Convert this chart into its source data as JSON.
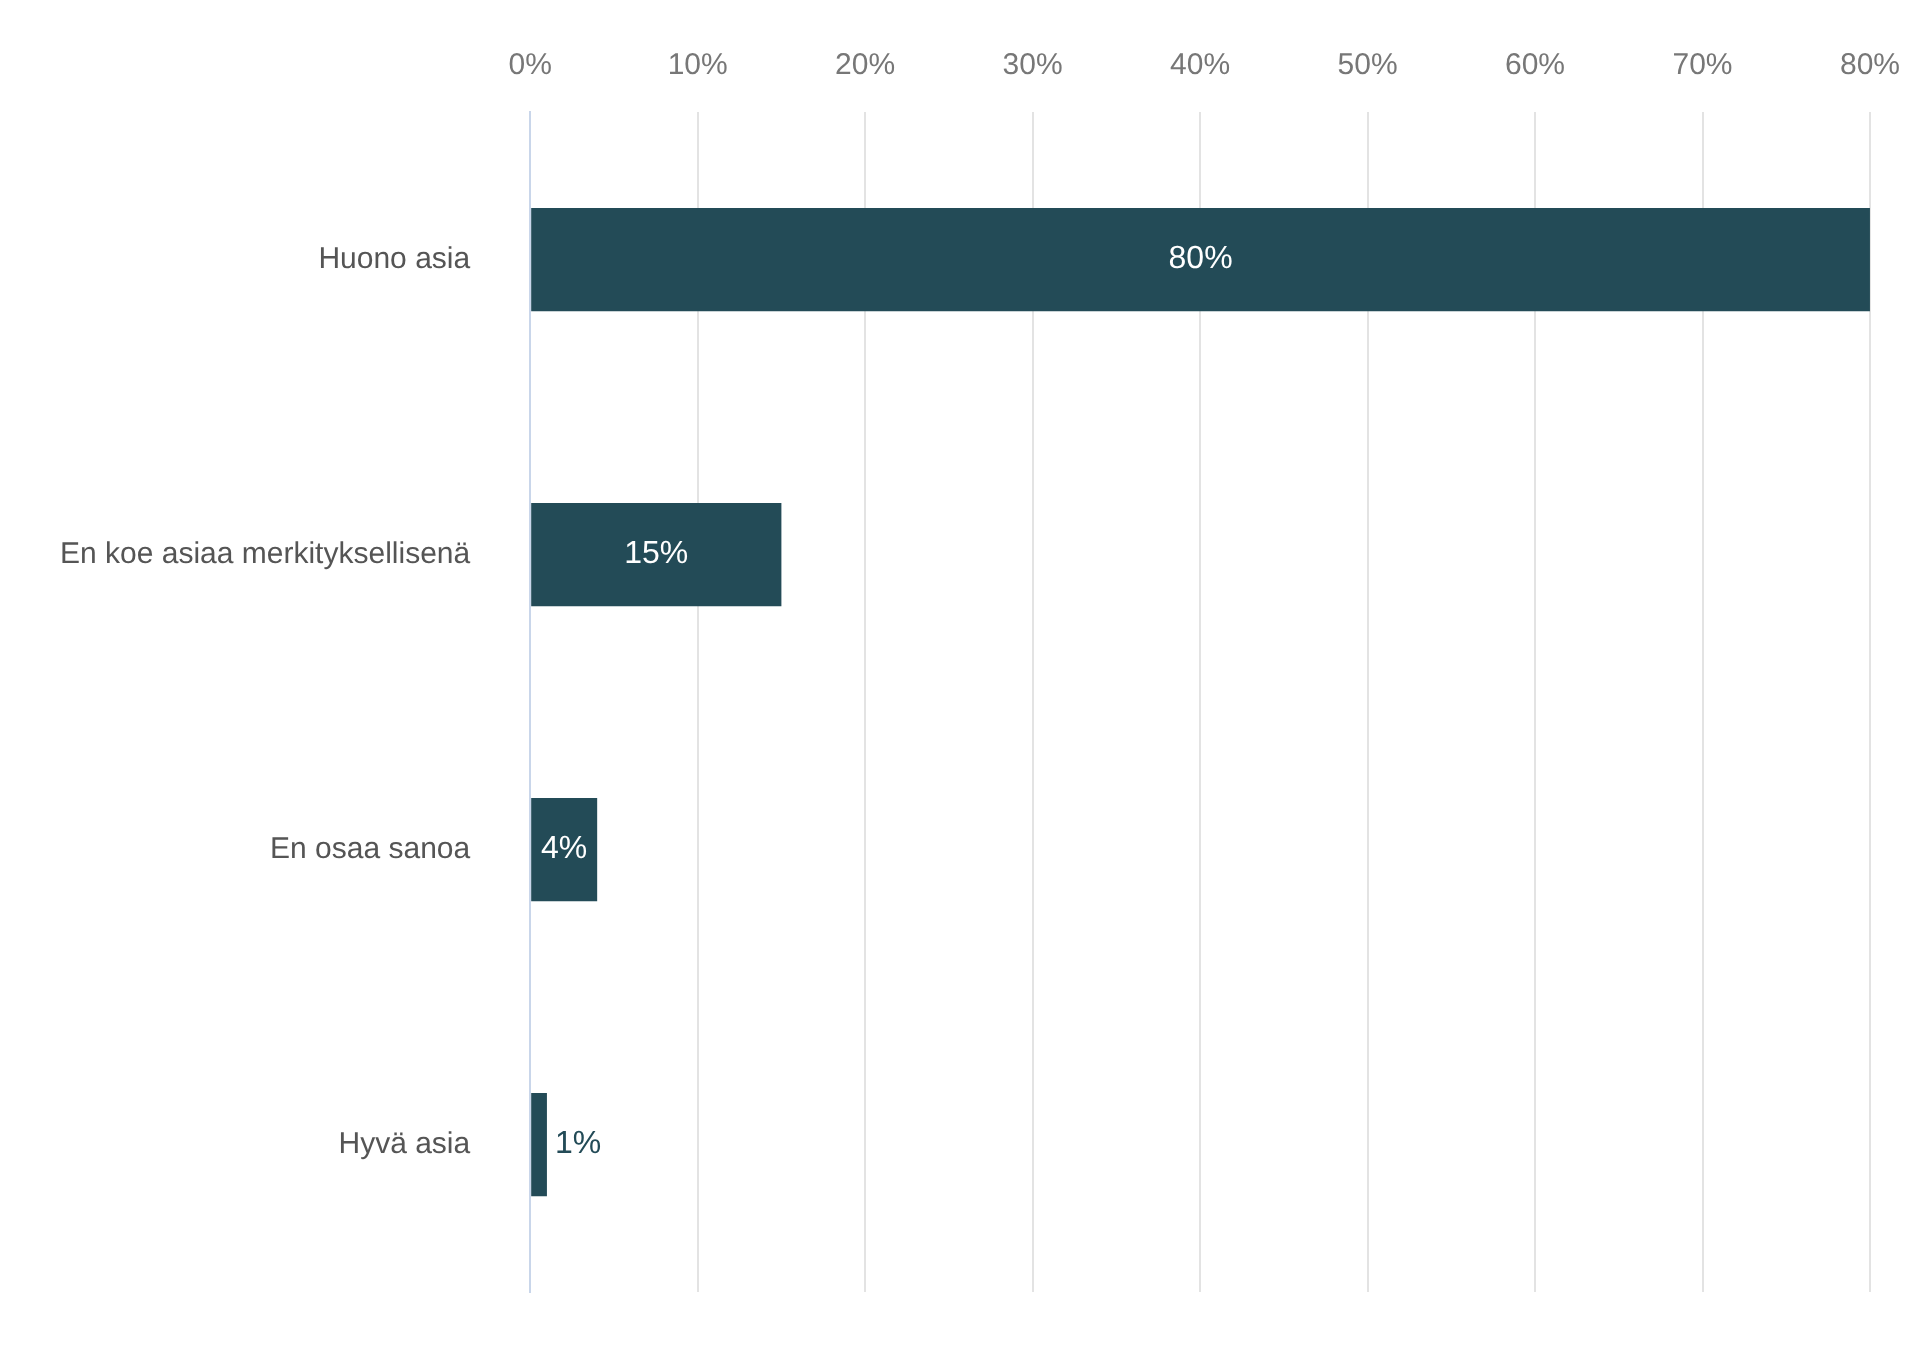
{
  "chart_data": {
    "type": "bar",
    "orientation": "horizontal",
    "categories": [
      "Huono asia",
      "En koe asiaa merkityksellisenä",
      "En osaa sanoa",
      "Hyvä asia"
    ],
    "values": [
      80,
      15,
      4,
      1
    ],
    "color": "#234b57",
    "value_labels": [
      "80%",
      "15%",
      "4%",
      "1%"
    ],
    "xlim": [
      0,
      80
    ],
    "xticks": [
      {
        "value": 0,
        "label": "0%"
      },
      {
        "value": 10,
        "label": "10%"
      },
      {
        "value": 20,
        "label": "20%"
      },
      {
        "value": 30,
        "label": "30%"
      },
      {
        "value": 40,
        "label": "40%"
      },
      {
        "value": 50,
        "label": "50%"
      },
      {
        "value": 60,
        "label": "60%"
      },
      {
        "value": 70,
        "label": "70%"
      },
      {
        "value": 80,
        "label": "80%"
      }
    ],
    "grid": "x",
    "legend": false
  }
}
